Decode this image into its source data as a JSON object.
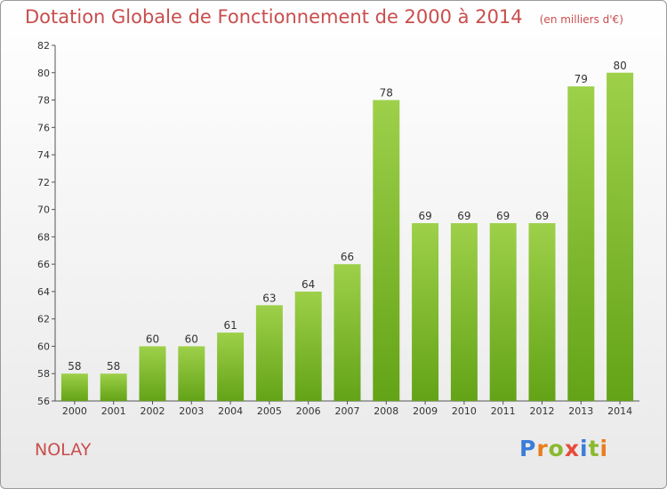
{
  "title": "Dotation Globale de Fonctionnement de 2000 à 2014",
  "subtitle": "(en milliers d'€)",
  "commune": "NOLAY",
  "logo": {
    "letters": [
      "P",
      "r",
      "o",
      "x",
      "i",
      "t",
      "i"
    ],
    "colors": [
      "#3b7dd8",
      "#e87e1c",
      "#8ab92e",
      "#e84b3c",
      "#3b7dd8",
      "#8ab92e",
      "#e87e1c"
    ]
  },
  "colors": {
    "bar_top": "#9ed04a",
    "bar_bottom": "#63a317",
    "title": "#c94d4d"
  },
  "chart_data": {
    "type": "bar",
    "categories": [
      "2000",
      "2001",
      "2002",
      "2003",
      "2004",
      "2005",
      "2006",
      "2007",
      "2008",
      "2009",
      "2010",
      "2011",
      "2012",
      "2013",
      "2014"
    ],
    "values": [
      58,
      58,
      60,
      60,
      61,
      63,
      64,
      66,
      78,
      69,
      69,
      69,
      69,
      79,
      80
    ],
    "ylim": [
      56,
      82
    ],
    "yticks": [
      56,
      58,
      60,
      62,
      64,
      66,
      68,
      70,
      72,
      74,
      76,
      78,
      80,
      82
    ],
    "title": "Dotation Globale de Fonctionnement de 2000 à 2014",
    "xlabel": "",
    "ylabel": "",
    "grid": false,
    "data_labels": true
  }
}
